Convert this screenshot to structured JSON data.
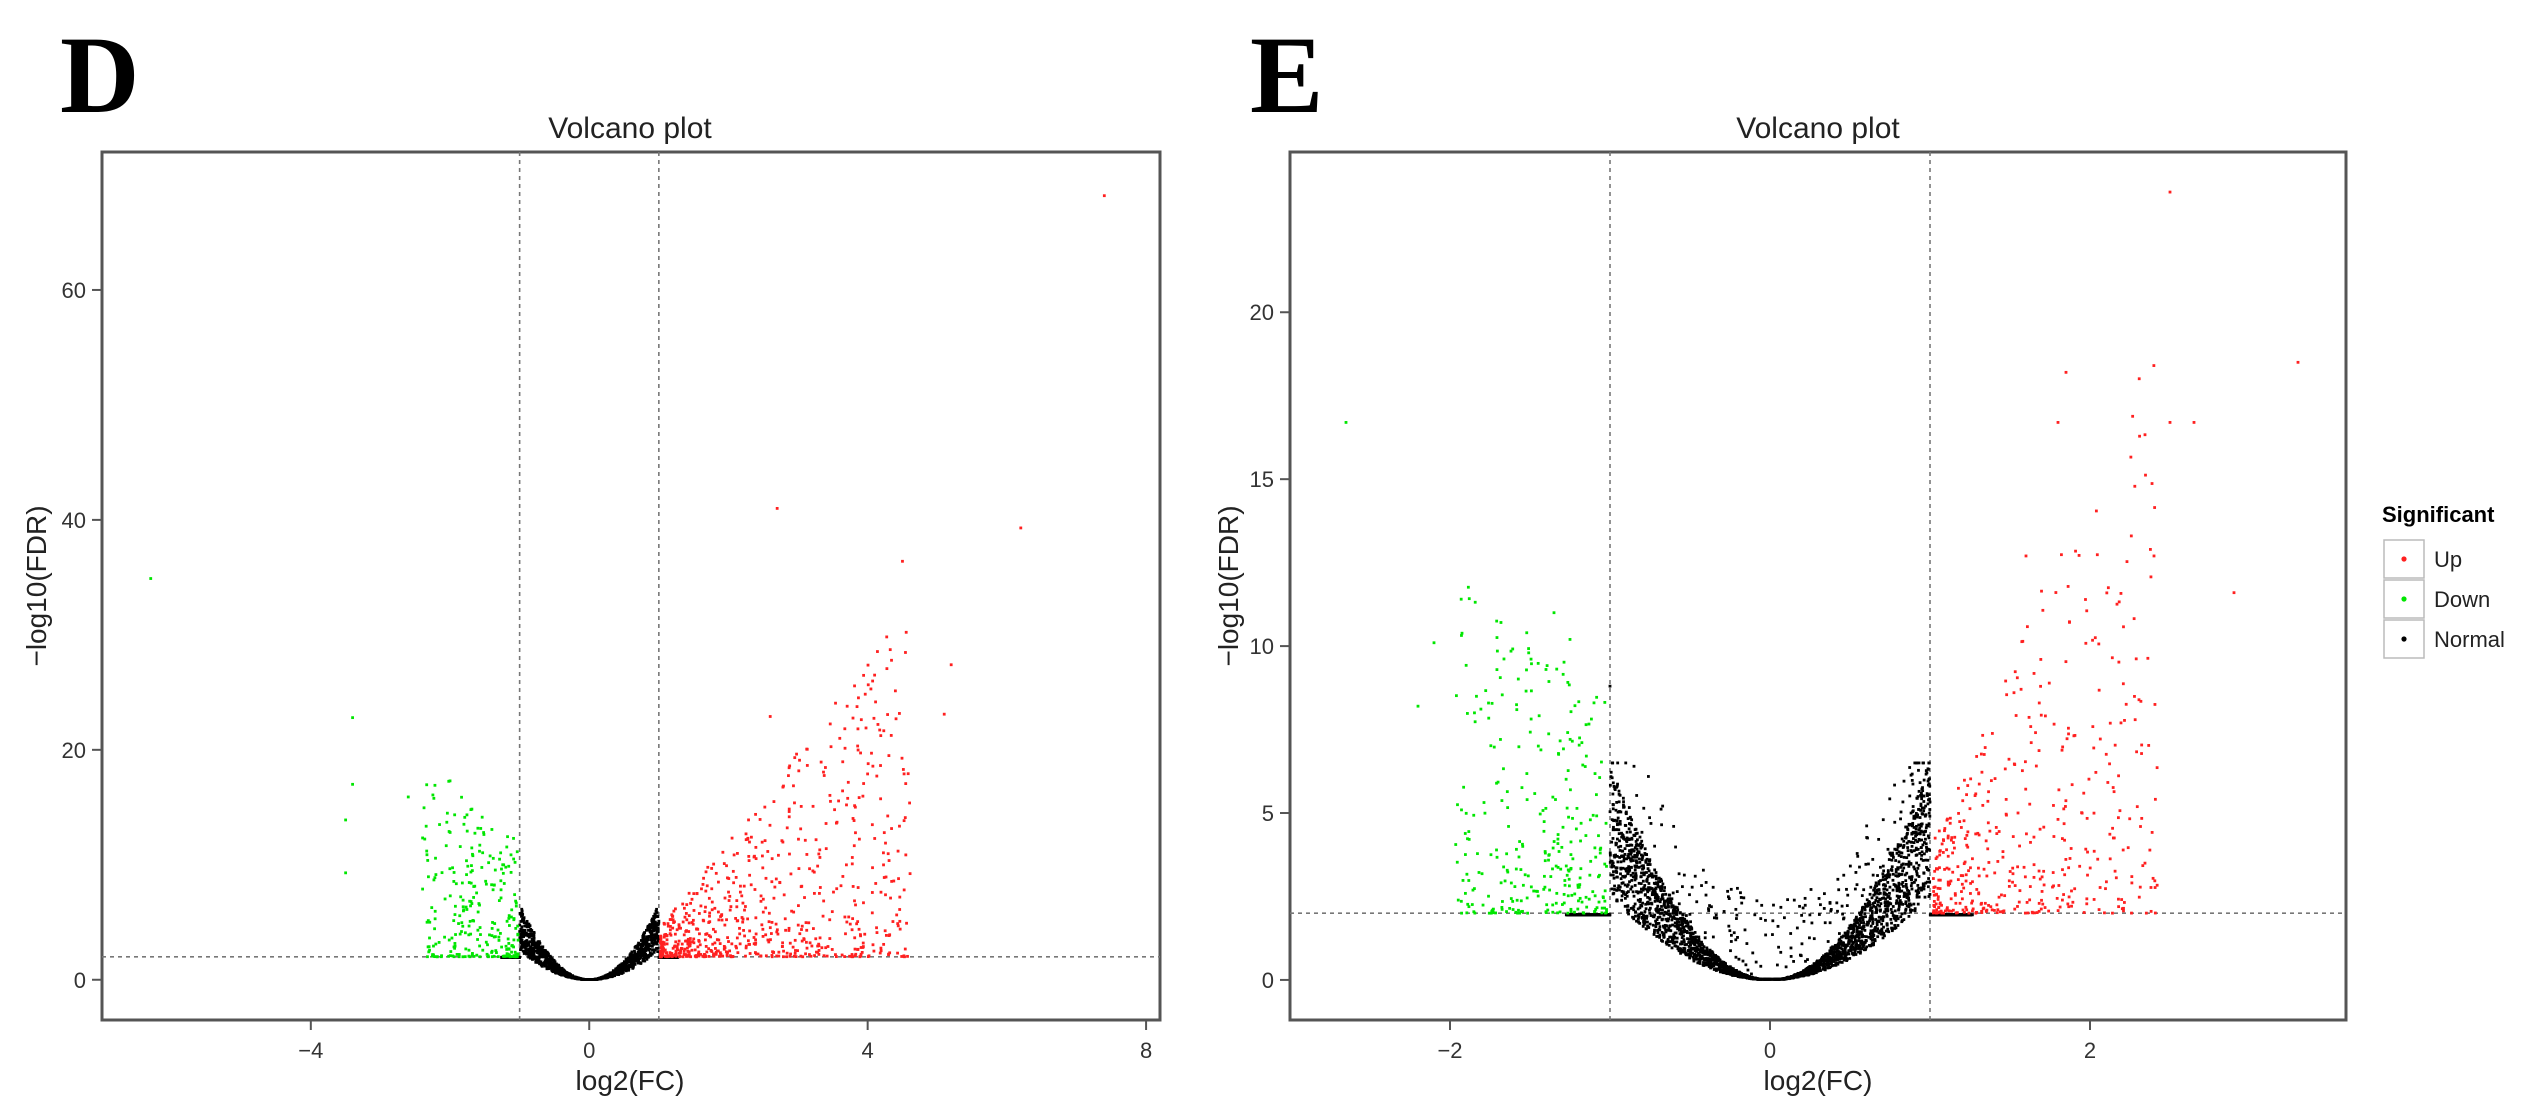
{
  "panels": [
    {
      "label": "D"
    },
    {
      "label": "E"
    }
  ],
  "legend": {
    "title": "Significant",
    "entries": [
      {
        "name": "Up",
        "color": "#ff2020"
      },
      {
        "name": "Down",
        "color": "#00e600"
      },
      {
        "name": "Normal",
        "color": "#000000"
      }
    ]
  },
  "chart_data": [
    {
      "type": "scatter",
      "panel": "D",
      "title": "Volcano plot",
      "xlabel": "log2(FC)",
      "ylabel": "−log10(FDR)",
      "xlim": [
        -7.0,
        8.2
      ],
      "ylim": [
        -3.5,
        72
      ],
      "xticks": [
        -4,
        0,
        4,
        8
      ],
      "xtick_labels": [
        "−4",
        "0",
        "4",
        "8"
      ],
      "yticks": [
        0,
        20,
        40,
        60
      ],
      "ytick_labels": [
        "0",
        "20",
        "40",
        "60"
      ],
      "grid": false,
      "threshold_lines": {
        "x": [
          -1,
          1
        ],
        "y": 2
      },
      "colors": {
        "Up": "#ff2020",
        "Down": "#00e600",
        "Normal": "#000000"
      },
      "normal_points": 1500,
      "down_points": 260,
      "up_points": 700,
      "highlighted_points": [
        {
          "x": 7.4,
          "y": 68.2,
          "group": "Up"
        },
        {
          "x": 2.7,
          "y": 41.0,
          "group": "Up"
        },
        {
          "x": 6.2,
          "y": 39.3,
          "group": "Up"
        },
        {
          "x": 4.5,
          "y": 36.4,
          "group": "Up"
        },
        {
          "x": 5.2,
          "y": 27.4,
          "group": "Up"
        },
        {
          "x": 4.1,
          "y": 26.5,
          "group": "Up"
        },
        {
          "x": 5.1,
          "y": 23.1,
          "group": "Up"
        },
        {
          "x": 2.6,
          "y": 22.9,
          "group": "Up"
        },
        {
          "x": -6.3,
          "y": 34.9,
          "group": "Down"
        },
        {
          "x": -3.4,
          "y": 22.8,
          "group": "Down"
        },
        {
          "x": -3.4,
          "y": 17.0,
          "group": "Down"
        },
        {
          "x": -2.0,
          "y": 17.3,
          "group": "Down"
        },
        {
          "x": -2.6,
          "y": 15.9,
          "group": "Down"
        },
        {
          "x": -3.5,
          "y": 13.9,
          "group": "Down"
        },
        {
          "x": -1.7,
          "y": 14.8,
          "group": "Down"
        },
        {
          "x": -3.5,
          "y": 9.3,
          "group": "Down"
        }
      ]
    },
    {
      "type": "scatter",
      "panel": "E",
      "title": "Volcano plot",
      "xlabel": "log2(FC)",
      "ylabel": "−log10(FDR)",
      "xlim": [
        -3.0,
        3.6
      ],
      "ylim": [
        -1.2,
        24.8
      ],
      "xticks": [
        -2,
        0,
        2
      ],
      "xtick_labels": [
        "−2",
        "0",
        "2"
      ],
      "yticks": [
        0,
        5,
        10,
        15,
        20
      ],
      "ytick_labels": [
        "0",
        "5",
        "10",
        "15",
        "20"
      ],
      "grid": false,
      "threshold_lines": {
        "x": [
          -1,
          1
        ],
        "y": 2
      },
      "colors": {
        "Up": "#ff2020",
        "Down": "#00e600",
        "Normal": "#000000"
      },
      "normal_points": 3500,
      "down_points": 300,
      "up_points": 450,
      "highlighted_points": [
        {
          "x": 2.5,
          "y": 23.6,
          "group": "Up"
        },
        {
          "x": 3.3,
          "y": 18.5,
          "group": "Up"
        },
        {
          "x": 1.85,
          "y": 18.2,
          "group": "Up"
        },
        {
          "x": 1.8,
          "y": 16.7,
          "group": "Up"
        },
        {
          "x": 2.5,
          "y": 16.7,
          "group": "Up"
        },
        {
          "x": 2.65,
          "y": 16.7,
          "group": "Up"
        },
        {
          "x": 2.4,
          "y": 12.7,
          "group": "Up"
        },
        {
          "x": 2.9,
          "y": 11.6,
          "group": "Up"
        },
        {
          "x": 1.6,
          "y": 12.7,
          "group": "Up"
        },
        {
          "x": -2.65,
          "y": 16.7,
          "group": "Down"
        },
        {
          "x": -1.35,
          "y": 11.0,
          "group": "Down"
        },
        {
          "x": -2.1,
          "y": 10.1,
          "group": "Down"
        },
        {
          "x": -1.25,
          "y": 10.2,
          "group": "Down"
        },
        {
          "x": -1.4,
          "y": 9.3,
          "group": "Down"
        },
        {
          "x": -1.1,
          "y": 8.3,
          "group": "Down"
        },
        {
          "x": -2.2,
          "y": 8.2,
          "group": "Down"
        },
        {
          "x": -1.0,
          "y": 8.8,
          "group": "Normal"
        },
        {
          "x": -0.85,
          "y": 6.4,
          "group": "Normal"
        }
      ]
    }
  ]
}
